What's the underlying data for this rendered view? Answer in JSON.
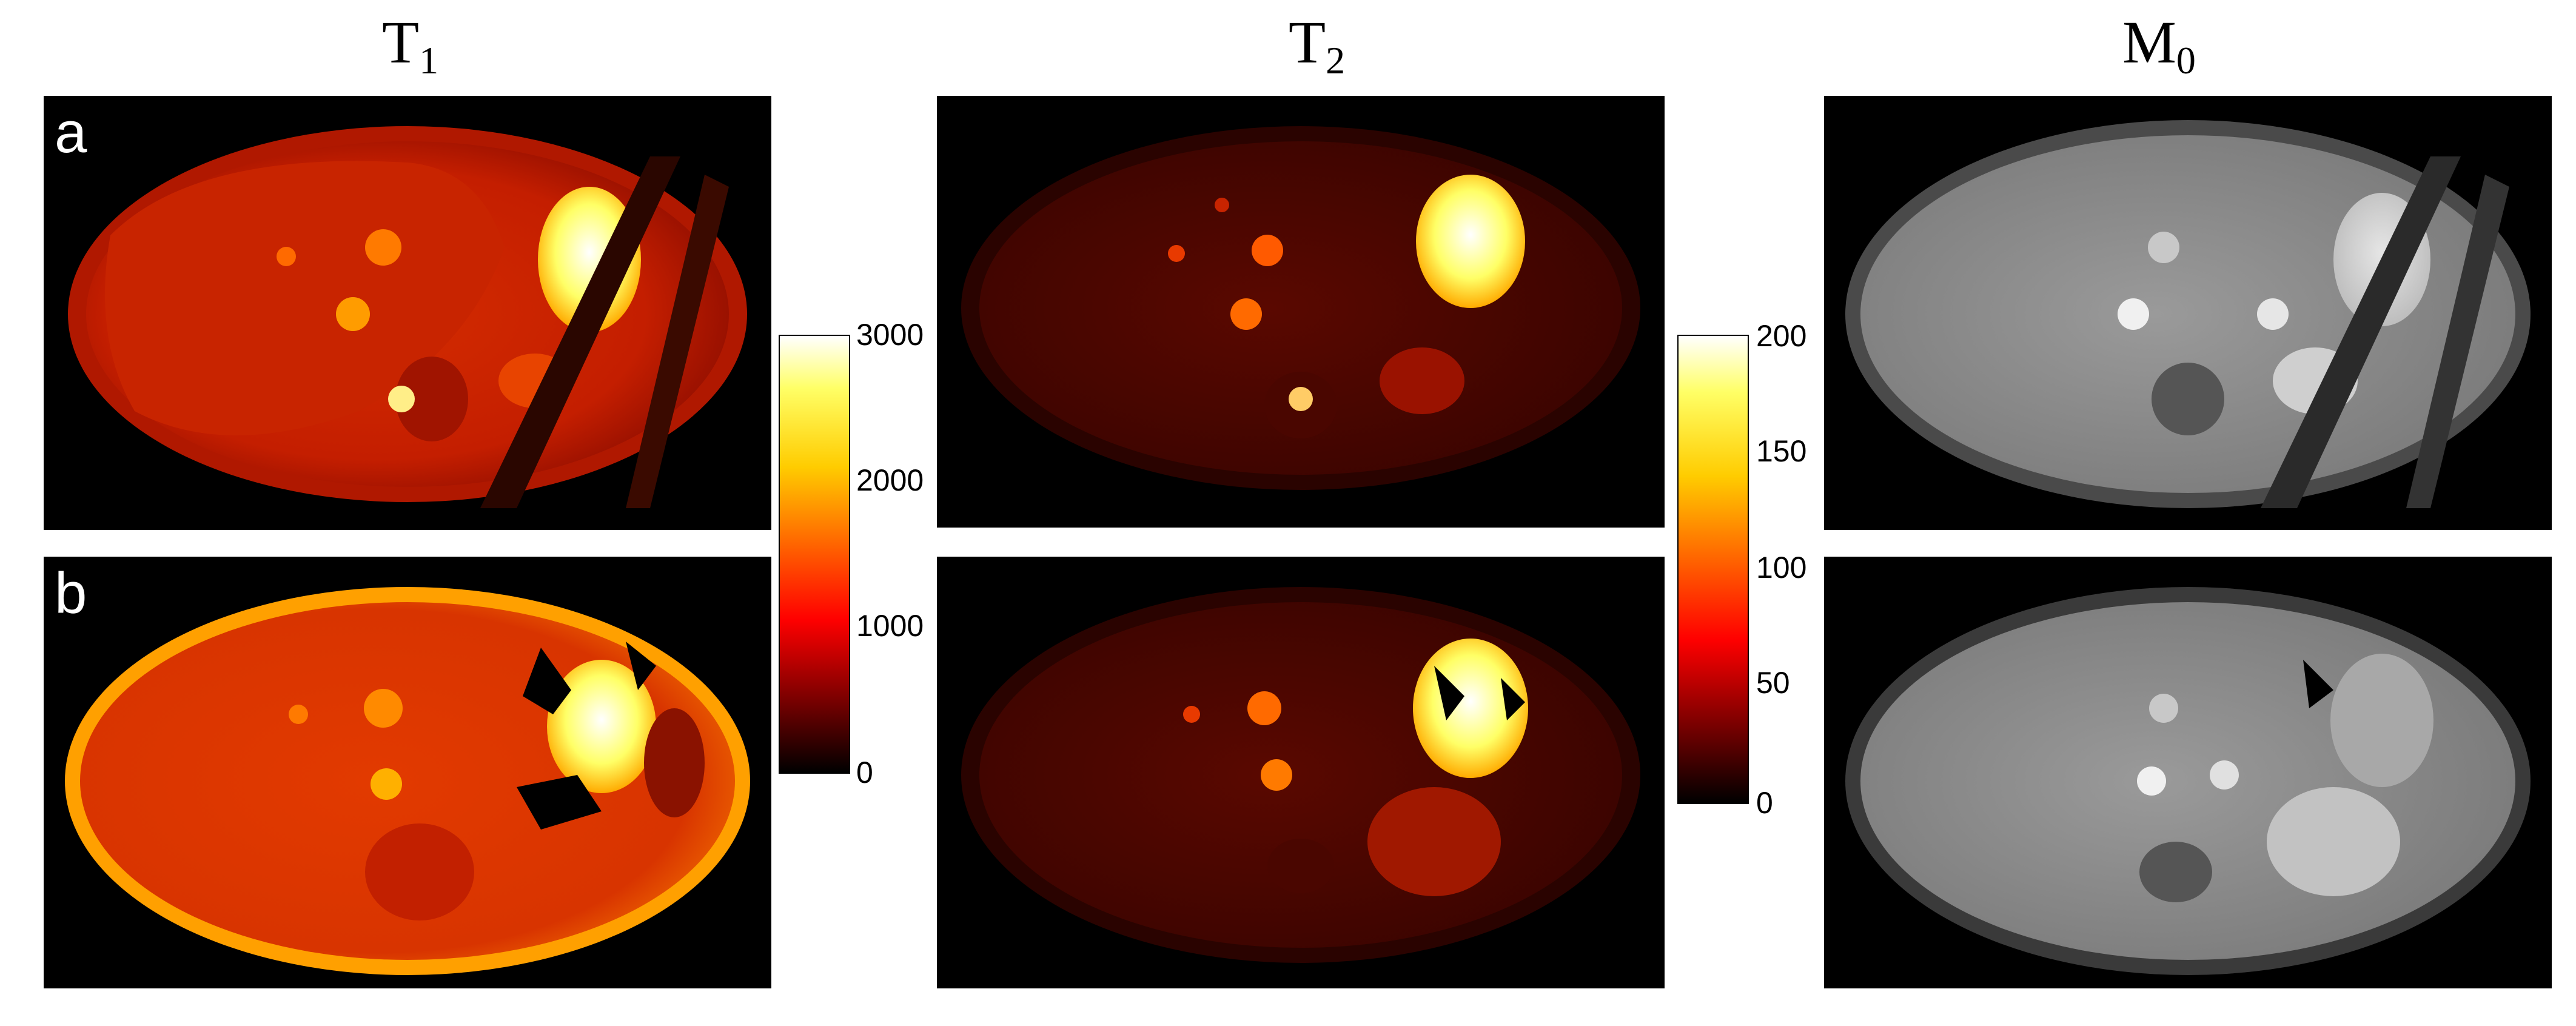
{
  "columns": [
    {
      "id": "t1",
      "symbol": "T",
      "subscript": "1"
    },
    {
      "id": "t2",
      "symbol": "T",
      "subscript": "2"
    },
    {
      "id": "m0",
      "symbol": "M",
      "subscript": "0"
    }
  ],
  "rows": [
    {
      "label": "a"
    },
    {
      "label": "b"
    }
  ],
  "colorbars": {
    "t1": {
      "ticks": [
        "3000",
        "2000",
        "1000",
        "0"
      ],
      "range": [
        0,
        3000
      ],
      "colormap": "hot"
    },
    "t2": {
      "ticks": [
        "200",
        "150",
        "100",
        "50",
        "0"
      ],
      "range": [
        0,
        200
      ],
      "colormap": "hot"
    }
  },
  "colors": {
    "hot_low": "#000000",
    "hot_mid": "#ff0000",
    "hot_high": "#ffff00",
    "hot_top": "#ffffff"
  }
}
